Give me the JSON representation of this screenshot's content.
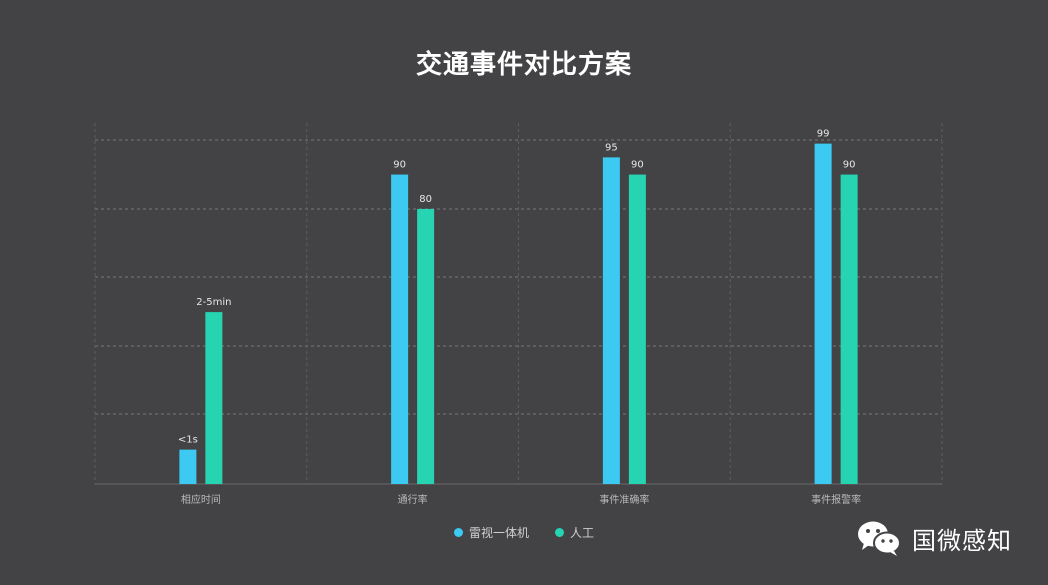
{
  "chart_data": {
    "type": "bar",
    "title": "交通事件对比方案",
    "categories": [
      "相应时间",
      "通行率",
      "事件准确率",
      "事件报警率"
    ],
    "ylim": [
      0,
      105
    ],
    "grid": true,
    "legend_position": "bottom-center",
    "series": [
      {
        "name": "雷视一体机",
        "color": "#3ccaf2",
        "values": [
          10,
          90,
          95,
          99
        ],
        "labels": [
          "<1s",
          "90",
          "95",
          "99"
        ]
      },
      {
        "name": "人工",
        "color": "#26d4b2",
        "values": [
          50,
          80,
          90,
          90
        ],
        "labels": [
          "2-5min",
          "80",
          "90",
          "90"
        ]
      }
    ]
  },
  "watermark": {
    "text": "国微感知",
    "icon": "wechat-icon"
  }
}
